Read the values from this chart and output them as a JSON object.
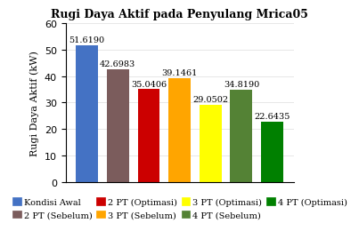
{
  "title": "Rugi Daya Aktif pada Penyulang Mrica05",
  "ylabel": "Rugi Daya Aktif (kW)",
  "values": [
    51.619,
    42.6983,
    35.0406,
    39.1461,
    29.0502,
    34.819,
    22.6435
  ],
  "colors": [
    "#4472C4",
    "#7B5C5C",
    "#CC0000",
    "#FFA500",
    "#FFFF00",
    "#548235",
    "#008000"
  ],
  "ylim": [
    0,
    60
  ],
  "yticks": [
    0,
    10,
    20,
    30,
    40,
    50,
    60
  ],
  "legend_row1": [
    "Kondisi Awal",
    "2 PT (Sebelum)",
    "2 PT (Optimasi)",
    "3 PT (Sebelum)"
  ],
  "legend_row2": [
    "3 PT (Optimasi)",
    "4 PT (Sebelum)",
    "4 PT (Optimasi)"
  ],
  "legend_colors": [
    "#4472C4",
    "#7B5C5C",
    "#CC0000",
    "#FFA500",
    "#FFFF00",
    "#548235",
    "#008000"
  ],
  "bar_width": 0.72,
  "title_fontsize": 9,
  "value_fontsize": 7,
  "ylabel_fontsize": 8,
  "tick_fontsize": 8,
  "legend_fontsize": 7
}
